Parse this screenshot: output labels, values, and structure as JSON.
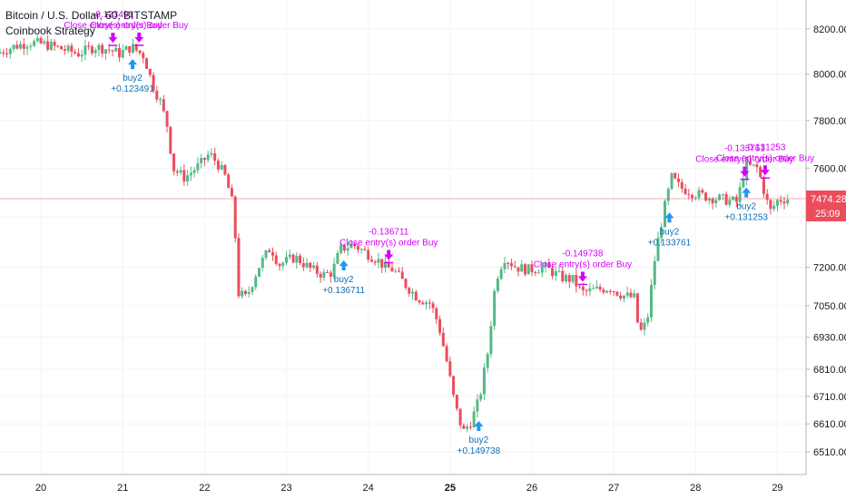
{
  "header": {
    "symbol": "Bitcoin / U.S. Dollar, 60, BITSTAMP",
    "strategy": "Coinbook Strategy"
  },
  "price_tag": {
    "price": "7474.28",
    "countdown": "25:09"
  },
  "colors": {
    "up": "#53b987",
    "down": "#eb4d5c",
    "buy": "#2196f3",
    "close": "#d500f9",
    "price_line": "#eb4d5c"
  },
  "chart_data": {
    "type": "candlestick",
    "y_axis": {
      "scale": "log",
      "ylim": [
        6430,
        8330
      ],
      "ticks": [
        8200,
        8000,
        7800,
        7600,
        7400,
        7200,
        7050,
        6930,
        6810,
        6710,
        6610,
        6510
      ],
      "tick_labels": [
        "8200.00",
        "8000.00",
        "7800.00",
        "7600.00",
        "7400.00",
        "7200.00",
        "7050.00",
        "6930.00",
        "6810.00",
        "6710.00",
        "6610.00",
        "6510.00"
      ]
    },
    "x_axis": {
      "xlim": [
        19.5,
        29.35
      ],
      "ticks": [
        20,
        21,
        22,
        23,
        24,
        25,
        26,
        27,
        28,
        29
      ],
      "tick_labels": [
        "20",
        "21",
        "22",
        "23",
        "24",
        "25",
        "26",
        "27",
        "28",
        "29"
      ]
    },
    "price_path": [
      [
        19.5,
        8090
      ],
      [
        19.7,
        8120
      ],
      [
        19.9,
        8140
      ],
      [
        20.1,
        8130
      ],
      [
        20.3,
        8110
      ],
      [
        20.5,
        8090
      ],
      [
        20.7,
        8120
      ],
      [
        20.85,
        8110
      ],
      [
        21.0,
        8090
      ],
      [
        21.15,
        8120
      ],
      [
        21.3,
        8080
      ],
      [
        21.4,
        7960
      ],
      [
        21.5,
        7880
      ],
      [
        21.6,
        7760
      ],
      [
        21.65,
        7600
      ],
      [
        21.8,
        7560
      ],
      [
        22.0,
        7620
      ],
      [
        22.1,
        7660
      ],
      [
        22.2,
        7620
      ],
      [
        22.3,
        7560
      ],
      [
        22.4,
        7430
      ],
      [
        22.45,
        7100
      ],
      [
        22.55,
        7080
      ],
      [
        22.7,
        7200
      ],
      [
        22.85,
        7280
      ],
      [
        22.95,
        7210
      ],
      [
        23.15,
        7240
      ],
      [
        23.35,
        7190
      ],
      [
        23.5,
        7170
      ],
      [
        23.6,
        7180
      ],
      [
        23.7,
        7270
      ],
      [
        23.85,
        7290
      ],
      [
        24.0,
        7260
      ],
      [
        24.15,
        7230
      ],
      [
        24.25,
        7200
      ],
      [
        24.35,
        7190
      ],
      [
        24.5,
        7130
      ],
      [
        24.65,
        7080
      ],
      [
        24.8,
        7060
      ],
      [
        24.9,
        6980
      ],
      [
        25.0,
        6840
      ],
      [
        25.1,
        6680
      ],
      [
        25.2,
        6580
      ],
      [
        25.3,
        6620
      ],
      [
        25.4,
        6700
      ],
      [
        25.5,
        6870
      ],
      [
        25.6,
        7150
      ],
      [
        25.7,
        7240
      ],
      [
        25.85,
        7200
      ],
      [
        26.0,
        7190
      ],
      [
        26.2,
        7200
      ],
      [
        26.4,
        7160
      ],
      [
        26.55,
        7150
      ],
      [
        26.65,
        7100
      ],
      [
        26.8,
        7110
      ],
      [
        27.0,
        7120
      ],
      [
        27.15,
        7090
      ],
      [
        27.3,
        7080
      ],
      [
        27.35,
        6940
      ],
      [
        27.45,
        6990
      ],
      [
        27.55,
        7250
      ],
      [
        27.65,
        7420
      ],
      [
        27.75,
        7560
      ],
      [
        27.85,
        7520
      ],
      [
        28.0,
        7500
      ],
      [
        28.2,
        7480
      ],
      [
        28.4,
        7470
      ],
      [
        28.55,
        7460
      ],
      [
        28.65,
        7610
      ],
      [
        28.8,
        7600
      ],
      [
        28.95,
        7420
      ],
      [
        29.05,
        7470
      ],
      [
        29.15,
        7474
      ]
    ],
    "trades": [
      {
        "x": 21.12,
        "entry": "buy2",
        "return": "+0.123491"
      },
      {
        "x": 23.7,
        "entry": "buy2",
        "return": "+0.136711"
      },
      {
        "x": 25.35,
        "entry": "buy2",
        "return": "+0.149738"
      },
      {
        "x": 27.68,
        "entry": "buy2",
        "return": "+0.133761"
      },
      {
        "x": 28.62,
        "entry": "buy2",
        "return": "+0.131253"
      }
    ],
    "closes": [
      {
        "x": 20.88,
        "label": "Close entry(s) order Buy",
        "value": "-0.123491"
      },
      {
        "x": 21.2,
        "label": "Close entry(s) order Buy",
        "value": ""
      },
      {
        "x": 24.25,
        "label": "Close entry(s) order Buy",
        "value": "-0.136711"
      },
      {
        "x": 26.62,
        "label": "Close entry(s) order Buy",
        "value": "-0.149738"
      },
      {
        "x": 28.6,
        "label": "Close entry(s) order Buy",
        "value": "-0.133761"
      },
      {
        "x": 28.85,
        "label": "Close entry(s) order Buy",
        "value": "-0.131253"
      }
    ],
    "last_price": 7474.28
  }
}
